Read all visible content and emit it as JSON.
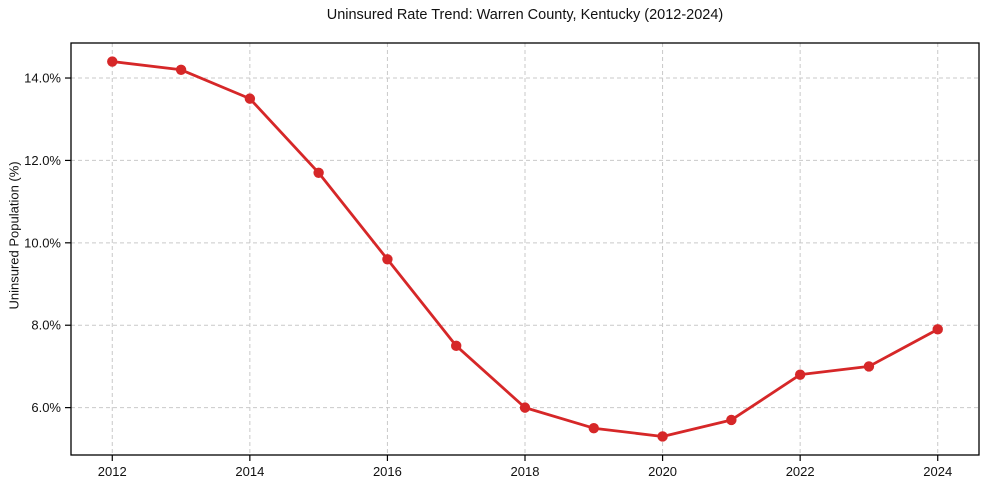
{
  "chart_data": {
    "type": "line",
    "title": "Uninsured Rate Trend: Warren County, Kentucky (2012-2024)",
    "xlabel": "",
    "ylabel": "Uninsured Population (%)",
    "x": [
      2012,
      2013,
      2014,
      2015,
      2016,
      2017,
      2018,
      2019,
      2020,
      2021,
      2022,
      2023,
      2024
    ],
    "values": [
      14.4,
      14.2,
      13.5,
      11.7,
      9.6,
      7.5,
      6.0,
      5.5,
      5.3,
      5.7,
      6.8,
      7.0,
      7.9
    ],
    "xlim": [
      2011.4,
      2024.6
    ],
    "ylim": [
      4.85,
      14.85
    ],
    "xticks": [
      2012,
      2014,
      2016,
      2018,
      2020,
      2022,
      2024
    ],
    "xtick_labels": [
      "2012",
      "2014",
      "2016",
      "2018",
      "2020",
      "2022",
      "2024"
    ],
    "yticks": [
      6,
      8,
      10,
      12,
      14
    ],
    "ytick_labels": [
      "6.0%",
      "8.0%",
      "10.0%",
      "12.0%",
      "14.0%"
    ],
    "grid": true,
    "grid_style": "dashed",
    "legend": "none",
    "colors": {
      "line": "#d62728",
      "marker": "#d62728",
      "grid": "#c9c9c9",
      "frame": "#000000",
      "text": "#111111",
      "background": "#ffffff"
    }
  }
}
